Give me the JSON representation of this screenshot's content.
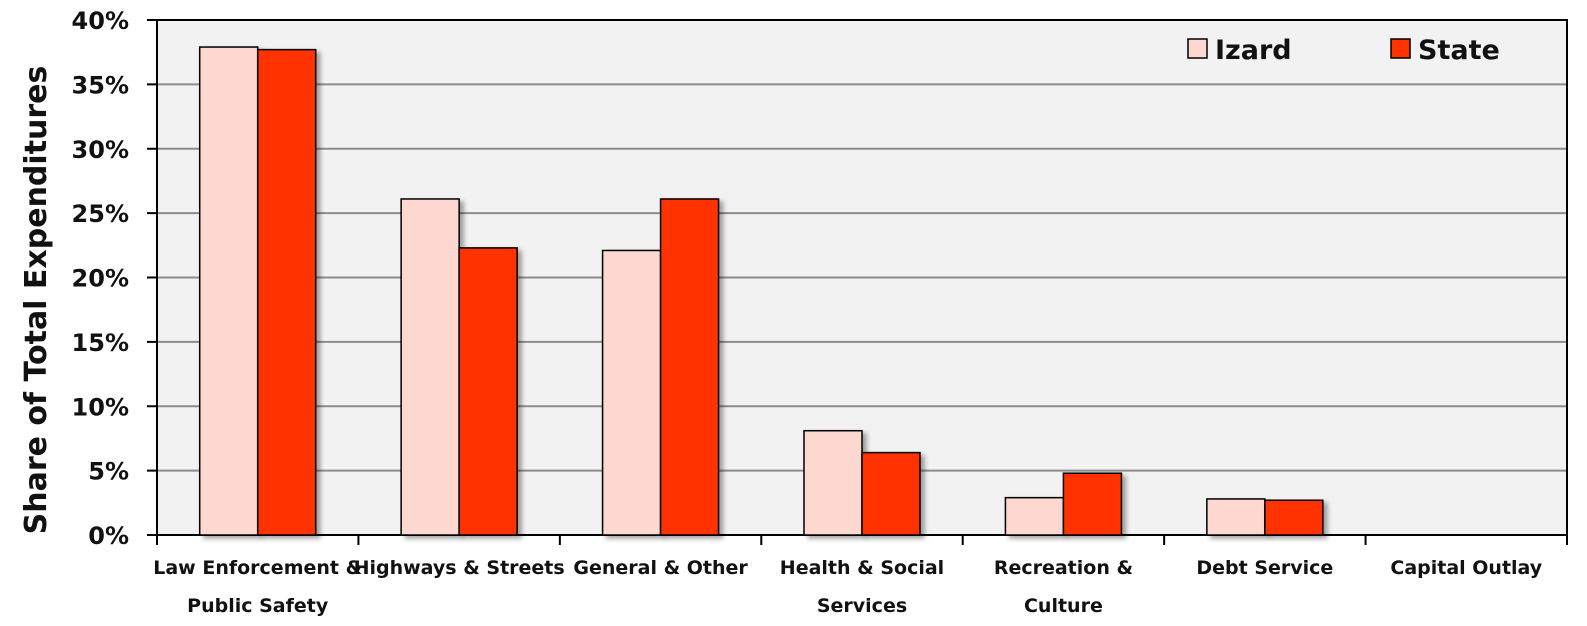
{
  "chart_data": {
    "type": "bar",
    "title": "",
    "xlabel": "",
    "ylabel": "Share of Total Expenditures",
    "ylim": [
      0,
      40
    ],
    "y_ticks": [
      "0%",
      "5%",
      "10%",
      "15%",
      "20%",
      "25%",
      "30%",
      "35%",
      "40%"
    ],
    "grid": true,
    "legend_position": "top-right",
    "categories": [
      [
        "Law Enforcement &",
        "Public Safety"
      ],
      [
        "Highways & Streets"
      ],
      [
        "General & Other"
      ],
      [
        "Health & Social",
        "Services"
      ],
      [
        "Recreation &",
        "Culture"
      ],
      [
        "Debt Service"
      ],
      [
        "Capital Outlay"
      ]
    ],
    "series": [
      {
        "name": "Izard",
        "color": "#fdd8d0",
        "values": [
          37.9,
          26.1,
          22.1,
          8.1,
          2.9,
          2.8,
          0
        ]
      },
      {
        "name": "State",
        "color": "#ff3300",
        "values": [
          37.7,
          22.3,
          26.1,
          6.4,
          4.8,
          2.7,
          0
        ]
      }
    ]
  }
}
